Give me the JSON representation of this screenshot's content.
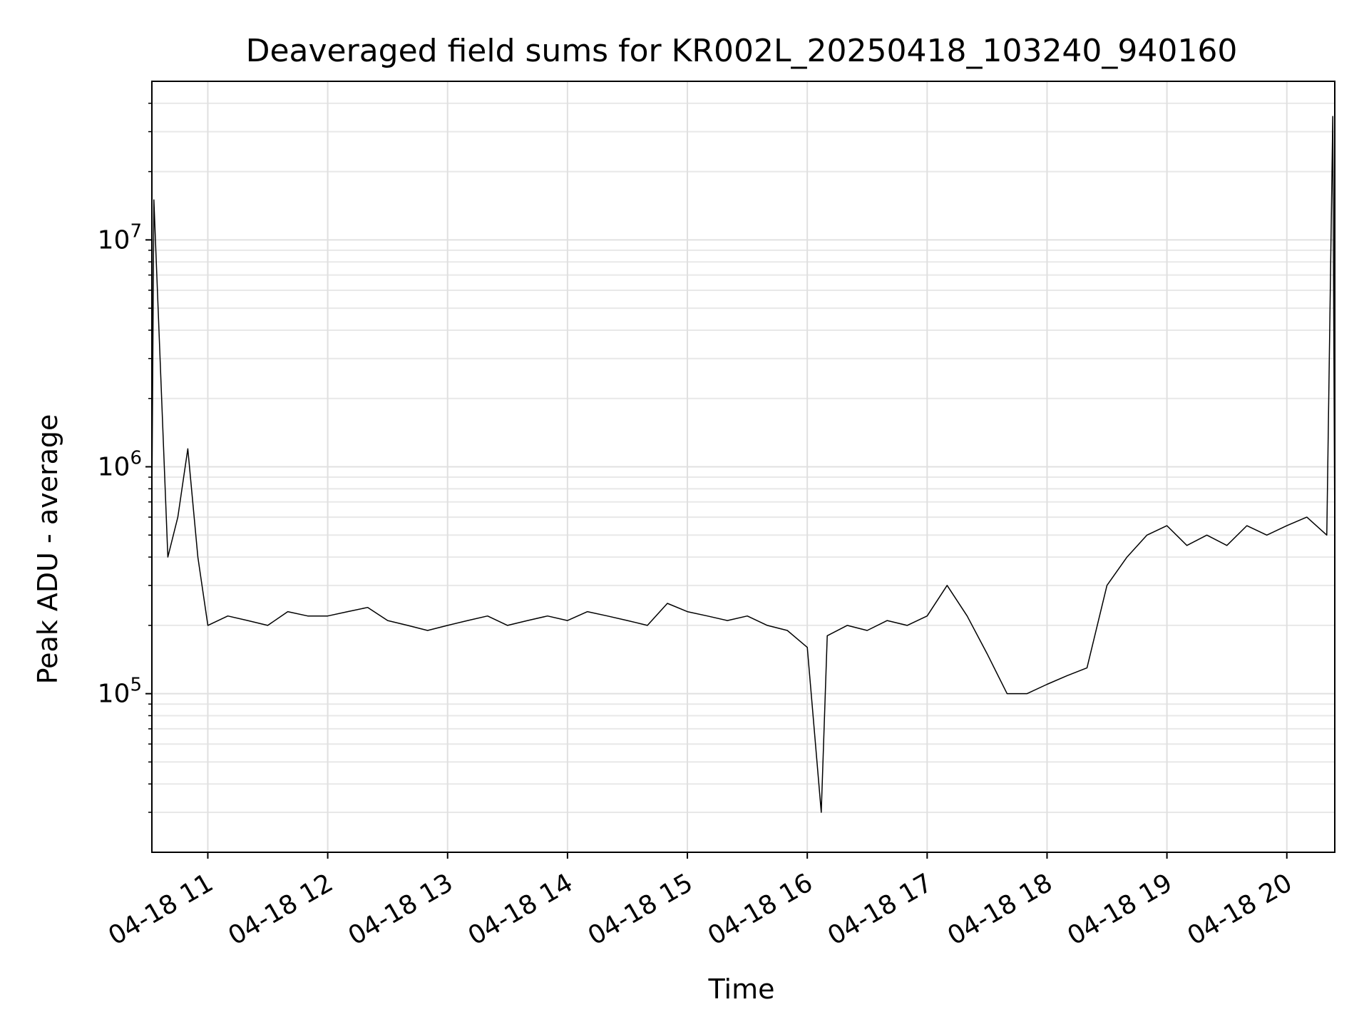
{
  "chart_data": {
    "type": "line",
    "title": "Deaveraged field sums for KR002L_20250418_103240_940160",
    "xlabel": "Time",
    "ylabel": "Peak ADU - average",
    "xlim": [
      "2025-04-18 10:32",
      "2025-04-18 20:24"
    ],
    "ylim": [
      20000,
      50000000
    ],
    "yscale": "log",
    "grid": true,
    "x_ticks": [
      {
        "value": "2025-04-18 11:00",
        "label": "04-18 11"
      },
      {
        "value": "2025-04-18 12:00",
        "label": "04-18 12"
      },
      {
        "value": "2025-04-18 13:00",
        "label": "04-18 13"
      },
      {
        "value": "2025-04-18 14:00",
        "label": "04-18 14"
      },
      {
        "value": "2025-04-18 15:00",
        "label": "04-18 15"
      },
      {
        "value": "2025-04-18 16:00",
        "label": "04-18 16"
      },
      {
        "value": "2025-04-18 17:00",
        "label": "04-18 17"
      },
      {
        "value": "2025-04-18 18:00",
        "label": "04-18 18"
      },
      {
        "value": "2025-04-18 19:00",
        "label": "04-18 19"
      },
      {
        "value": "2025-04-18 20:00",
        "label": "04-18 20"
      }
    ],
    "y_ticks": [
      {
        "value": 100000,
        "base": "10",
        "exp": "5"
      },
      {
        "value": 1000000,
        "base": "10",
        "exp": "6"
      },
      {
        "value": 10000000,
        "base": "10",
        "exp": "7"
      }
    ],
    "series": [
      {
        "color": "#000000",
        "x": [
          "2025-04-18 10:32",
          "2025-04-18 10:33",
          "2025-04-18 10:40",
          "2025-04-18 10:45",
          "2025-04-18 10:50",
          "2025-04-18 10:55",
          "2025-04-18 11:00",
          "2025-04-18 11:10",
          "2025-04-18 11:20",
          "2025-04-18 11:30",
          "2025-04-18 11:40",
          "2025-04-18 11:50",
          "2025-04-18 12:00",
          "2025-04-18 12:10",
          "2025-04-18 12:20",
          "2025-04-18 12:30",
          "2025-04-18 12:40",
          "2025-04-18 12:50",
          "2025-04-18 13:00",
          "2025-04-18 13:10",
          "2025-04-18 13:20",
          "2025-04-18 13:30",
          "2025-04-18 13:40",
          "2025-04-18 13:50",
          "2025-04-18 14:00",
          "2025-04-18 14:10",
          "2025-04-18 14:20",
          "2025-04-18 14:30",
          "2025-04-18 14:40",
          "2025-04-18 14:50",
          "2025-04-18 15:00",
          "2025-04-18 15:10",
          "2025-04-18 15:20",
          "2025-04-18 15:30",
          "2025-04-18 15:40",
          "2025-04-18 15:50",
          "2025-04-18 16:00",
          "2025-04-18 16:07",
          "2025-04-18 16:10",
          "2025-04-18 16:20",
          "2025-04-18 16:30",
          "2025-04-18 16:40",
          "2025-04-18 16:50",
          "2025-04-18 17:00",
          "2025-04-18 17:10",
          "2025-04-18 17:20",
          "2025-04-18 17:30",
          "2025-04-18 17:40",
          "2025-04-18 17:50",
          "2025-04-18 18:00",
          "2025-04-18 18:10",
          "2025-04-18 18:20",
          "2025-04-18 18:30",
          "2025-04-18 18:40",
          "2025-04-18 18:50",
          "2025-04-18 19:00",
          "2025-04-18 19:10",
          "2025-04-18 19:20",
          "2025-04-18 19:30",
          "2025-04-18 19:40",
          "2025-04-18 19:50",
          "2025-04-18 20:00",
          "2025-04-18 20:10",
          "2025-04-18 20:20",
          "2025-04-18 20:23",
          "2025-04-18 20:24"
        ],
        "y": [
          700000,
          15000000,
          400000,
          600000,
          1200000,
          400000,
          200000,
          220000,
          210000,
          200000,
          230000,
          220000,
          220000,
          230000,
          240000,
          210000,
          200000,
          190000,
          200000,
          210000,
          220000,
          200000,
          210000,
          220000,
          210000,
          230000,
          220000,
          210000,
          200000,
          250000,
          230000,
          220000,
          210000,
          220000,
          200000,
          190000,
          160000,
          30000,
          180000,
          200000,
          190000,
          210000,
          200000,
          220000,
          300000,
          220000,
          150000,
          100000,
          100000,
          110000,
          120000,
          130000,
          300000,
          400000,
          500000,
          550000,
          450000,
          500000,
          450000,
          550000,
          500000,
          550000,
          600000,
          500000,
          35000000,
          500000
        ]
      }
    ]
  }
}
